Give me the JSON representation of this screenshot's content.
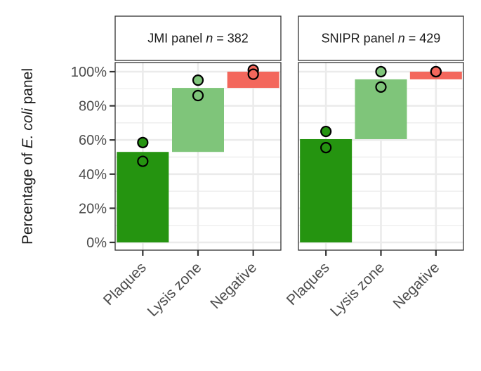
{
  "chart_data": {
    "type": "bar",
    "ylabel": {
      "before": "Percentage of ",
      "italic": "E. coli",
      "after": " panel"
    },
    "ylim": [
      0,
      100
    ],
    "yticks": [
      0,
      20,
      40,
      60,
      80,
      100
    ],
    "ytick_labels": [
      "0%",
      "20%",
      "40%",
      "60%",
      "80%",
      "100%"
    ],
    "categories": [
      "Plaques",
      "Lysis zone",
      "Negative"
    ],
    "grid": true,
    "colors": {
      "Plaques": "#259410",
      "Lysis zone": "#7fc57a",
      "Negative": "#f3675c"
    },
    "panels": [
      {
        "title": "JMI panel",
        "n_label": "n",
        "n_equals": " = 382",
        "bars": [
          {
            "category": "Plaques",
            "start": 0,
            "end": 53
          },
          {
            "category": "Lysis zone",
            "start": 53,
            "end": 90.5
          },
          {
            "category": "Negative",
            "start": 90.5,
            "end": 100
          }
        ],
        "points": [
          {
            "category": "Plaques",
            "values": [
              58.5,
              47.5
            ]
          },
          {
            "category": "Lysis zone",
            "values": [
              95,
              86
            ]
          },
          {
            "category": "Negative",
            "values": [
              101,
              98.5
            ]
          }
        ]
      },
      {
        "title": "SNIPR panel",
        "n_label": "n",
        "n_equals": " = 429",
        "bars": [
          {
            "category": "Plaques",
            "start": 0,
            "end": 60.5
          },
          {
            "category": "Lysis zone",
            "start": 60.5,
            "end": 95.5
          },
          {
            "category": "Negative",
            "start": 95.5,
            "end": 100
          }
        ],
        "points": [
          {
            "category": "Plaques",
            "values": [
              65,
              55.5
            ]
          },
          {
            "category": "Lysis zone",
            "values": [
              100,
              91
            ]
          },
          {
            "category": "Negative",
            "values": [
              100,
              100
            ]
          }
        ]
      }
    ]
  }
}
